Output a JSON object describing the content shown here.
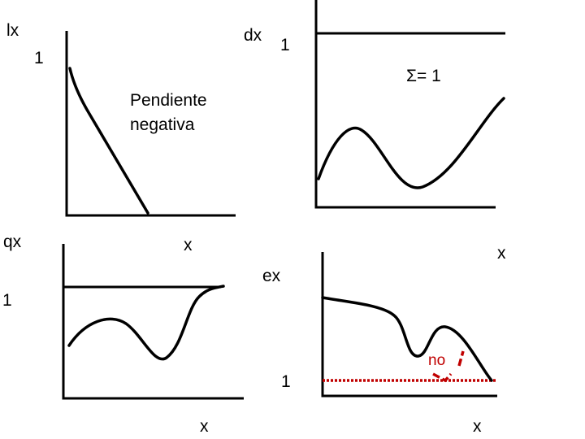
{
  "panels": [
    {
      "label": "lx",
      "axis_value": "1",
      "annotation": [
        "Pendiente",
        "negativa"
      ],
      "x_label": "x"
    },
    {
      "label": "dx",
      "axis_value": "1",
      "annotation": "Σ= 1",
      "x_label": "x"
    },
    {
      "label": "qx",
      "axis_value": "1",
      "x_label": "x"
    },
    {
      "label": "ex",
      "axis_value": "1",
      "annotation": "no",
      "x_label": "x"
    }
  ]
}
